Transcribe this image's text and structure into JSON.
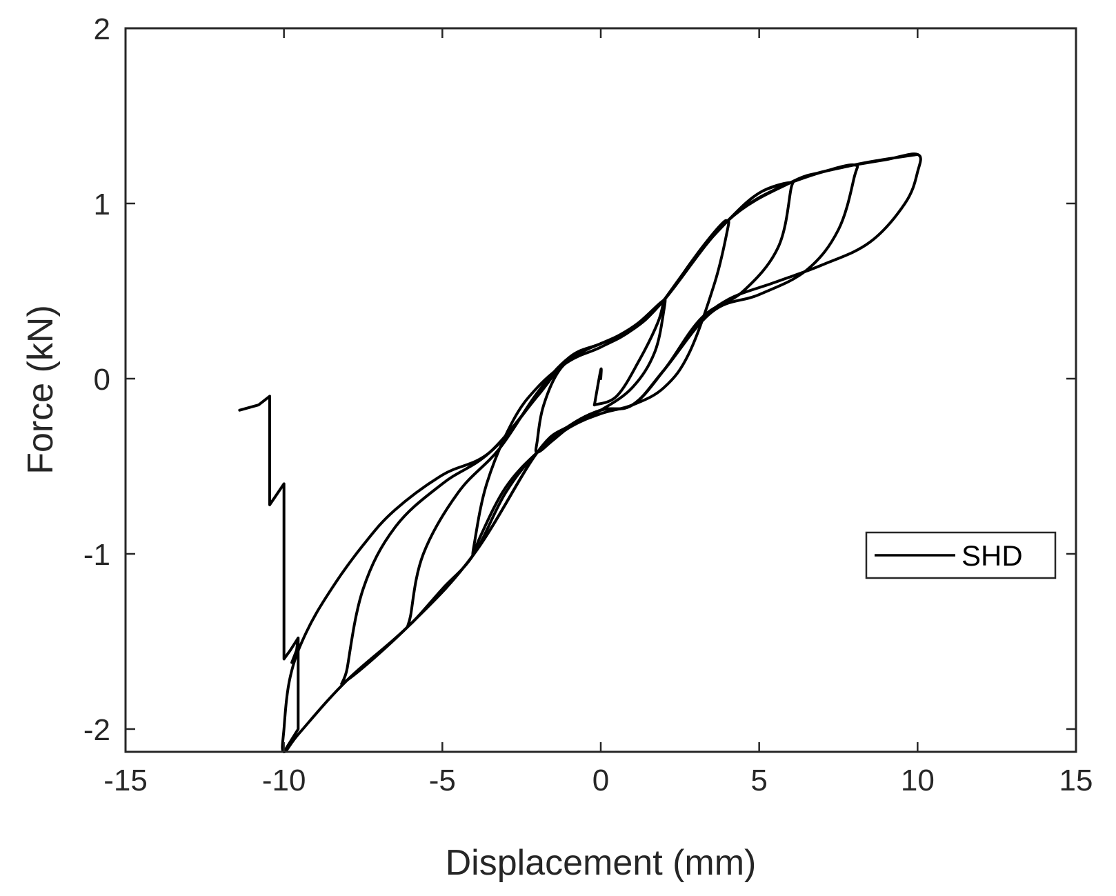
{
  "chart_data": {
    "type": "line",
    "title": "",
    "xlabel": "Displacement (mm)",
    "ylabel": "Force (kN)",
    "xlim": [
      -15,
      15
    ],
    "ylim": [
      -2.13,
      2
    ],
    "xticks": [
      -15,
      -10,
      -5,
      0,
      5,
      10,
      15
    ],
    "yticks": [
      -2,
      -1,
      0,
      1,
      2
    ],
    "xtick_labels": [
      "-15",
      "-10",
      "-5",
      "0",
      "5",
      "10",
      "15"
    ],
    "ytick_labels": [
      "-2",
      "-1",
      "0",
      "1",
      "2"
    ],
    "grid": false,
    "box": true,
    "legend": {
      "position": "east",
      "entries": [
        "SHD"
      ]
    },
    "colors": {
      "line": "#000000",
      "axis": "#262626",
      "background": "#ffffff"
    },
    "series": [
      {
        "name": "SHD",
        "description": "Cyclic hysteresis loops with increasing amplitude (±2, ±4, ±6, ±8, ±10 mm) and post-peak degradation at -10 mm",
        "loops": [
          {
            "amplitude": 0,
            "x": [
              0,
              0,
              -0.2
            ],
            "y": [
              0,
              0.05,
              -0.15
            ]
          },
          {
            "amplitude": 2,
            "x": [
              -0.2,
              0.5,
              1.2,
              1.8,
              2.0,
              2.0,
              1.7,
              1.0,
              0.0,
              -0.8,
              -1.5,
              -2.0,
              -2.0,
              -1.8,
              -1.3,
              -0.6,
              0.0,
              0.6,
              1.2,
              1.8,
              2.0
            ],
            "y": [
              -0.15,
              -0.1,
              0.1,
              0.32,
              0.45,
              0.4,
              0.15,
              -0.05,
              -0.18,
              -0.25,
              -0.35,
              -0.42,
              -0.35,
              -0.15,
              0.05,
              0.15,
              0.2,
              0.25,
              0.32,
              0.42,
              0.45
            ]
          },
          {
            "amplitude": 4,
            "x": [
              2.0,
              2.6,
              3.2,
              3.8,
              4.0,
              4.0,
              3.6,
              2.8,
              2.0,
              1.0,
              0.0,
              -1.0,
              -2.0,
              -3.0,
              -3.8,
              -4.0,
              -4.0,
              -3.6,
              -2.8,
              -2.0,
              -1.0,
              0.0,
              1.0,
              2.0,
              3.0,
              4.0
            ],
            "y": [
              0.45,
              0.6,
              0.75,
              0.88,
              0.9,
              0.85,
              0.55,
              0.15,
              -0.05,
              -0.15,
              -0.2,
              -0.28,
              -0.42,
              -0.62,
              -0.9,
              -1.0,
              -0.95,
              -0.6,
              -0.25,
              -0.05,
              0.1,
              0.18,
              0.28,
              0.45,
              0.7,
              0.9
            ]
          },
          {
            "amplitude": 6,
            "x": [
              4.0,
              5.0,
              6.0,
              6.0,
              5.6,
              4.5,
              3.2,
              2.0,
              1.0,
              0.0,
              -1.0,
              -2.0,
              -3.0,
              -4.0,
              -5.0,
              -6.0,
              -6.0,
              -5.6,
              -4.5,
              -3.2,
              -2.0,
              -1.0,
              0.0,
              1.0,
              2.0,
              3.0,
              4.0,
              5.0,
              6.0
            ],
            "y": [
              0.9,
              1.06,
              1.12,
              1.08,
              0.75,
              0.5,
              0.35,
              0.05,
              -0.15,
              -0.18,
              -0.27,
              -0.42,
              -0.65,
              -1.0,
              -1.2,
              -1.4,
              -1.35,
              -1.0,
              -0.65,
              -0.4,
              -0.08,
              0.12,
              0.2,
              0.28,
              0.45,
              0.7,
              0.9,
              1.06,
              1.12
            ]
          },
          {
            "amplitude": 8,
            "x": [
              6.0,
              7.0,
              8.0,
              8.0,
              7.5,
              6.5,
              5.0,
              3.5,
              2.0,
              1.0,
              0.0,
              -1.0,
              -2.0,
              -4.0,
              -6.0,
              -8.0,
              -8.0,
              -7.5,
              -6.5,
              -5.0,
              -3.5,
              -2.0,
              -1.0,
              0.0,
              1.0,
              2.0,
              4.0,
              6.0,
              7.0,
              8.0
            ],
            "y": [
              1.12,
              1.18,
              1.22,
              1.15,
              0.85,
              0.62,
              0.48,
              0.38,
              0.05,
              -0.15,
              -0.18,
              -0.27,
              -0.42,
              -1.0,
              -1.4,
              -1.72,
              -1.65,
              -1.2,
              -0.85,
              -0.6,
              -0.42,
              -0.1,
              0.12,
              0.2,
              0.28,
              0.45,
              0.9,
              1.12,
              1.18,
              1.22
            ]
          },
          {
            "amplitude": 10,
            "x": [
              8.0,
              9.0,
              10.0,
              10.0,
              9.6,
              8.5,
              7.0,
              5.5,
              4.0,
              3.0,
              2.0,
              1.0,
              0.0,
              -1.0,
              -2.0,
              -4.0,
              -6.0,
              -8.0,
              -9.5,
              -10.0,
              -10.0,
              -9.8,
              -9.3,
              -8.5,
              -7.5,
              -6.5,
              -5.0,
              -3.5,
              -2.0,
              -1.0,
              0.0,
              1.0,
              2.0,
              4.0,
              6.0,
              8.0,
              10.0
            ],
            "y": [
              1.22,
              1.25,
              1.28,
              1.18,
              1.0,
              0.78,
              0.65,
              0.55,
              0.45,
              0.3,
              0.05,
              -0.15,
              -0.18,
              -0.27,
              -0.42,
              -1.0,
              -1.4,
              -1.72,
              -2.02,
              -2.13,
              -2.0,
              -1.7,
              -1.45,
              -1.2,
              -0.95,
              -0.75,
              -0.55,
              -0.42,
              -0.1,
              0.12,
              0.2,
              0.28,
              0.45,
              0.9,
              1.12,
              1.22,
              1.28
            ]
          },
          {
            "amplitude": -10,
            "segment": "post-peak degradation",
            "x": [
              -10.0,
              -9.55,
              -9.55,
              -9.6,
              -9.75,
              -9.55,
              -9.55,
              -9.8,
              -10.0,
              -10.0,
              -10.3,
              -10.45,
              -10.45,
              -10.8,
              -11.4
            ],
            "y": [
              -2.13,
              -2.0,
              -1.48,
              -1.55,
              -1.62,
              -1.55,
              -1.48,
              -1.55,
              -1.6,
              -0.6,
              -0.68,
              -0.72,
              -0.1,
              -0.15,
              -0.18
            ]
          }
        ]
      }
    ]
  }
}
